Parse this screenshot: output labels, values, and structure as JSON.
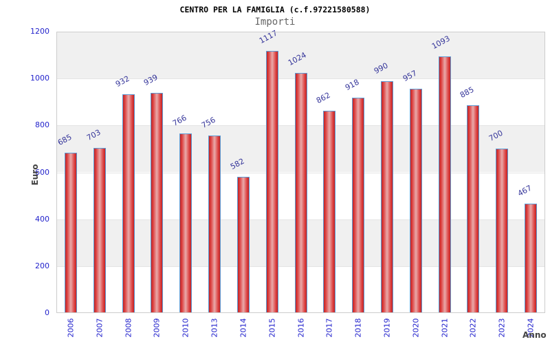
{
  "chart_data": {
    "type": "bar",
    "title": "CENTRO PER LA FAMIGLIA (c.f.97221580588)",
    "subtitle": "Importi",
    "xlabel": "Anno",
    "ylabel": "Euro",
    "categories": [
      "2006",
      "2007",
      "2008",
      "2009",
      "2010",
      "2013",
      "2014",
      "2015",
      "2016",
      "2017",
      "2018",
      "2019",
      "2020",
      "2021",
      "2022",
      "2023",
      "2024"
    ],
    "values": [
      685,
      703,
      932,
      939,
      766,
      756,
      582,
      1117,
      1024,
      862,
      918,
      990,
      957,
      1093,
      885,
      700,
      467
    ],
    "ylim": [
      0,
      1200
    ],
    "ytick_step": 200,
    "yticks": [
      0,
      200,
      400,
      600,
      800,
      1000,
      1200
    ],
    "grid": "alternating-horizontal-bands",
    "legend": "none",
    "value_labels_rotated": true,
    "colors": {
      "bar_edge_red": "#c32222",
      "bar_inner_red": "#dd4444",
      "bar_mid_pink": "#e9aaaa",
      "bar_border_blue": "#5b9bd5",
      "value_label_blue": "#333399",
      "tick_label_blue": "#2222cc",
      "band_gray": "#f0f0f0",
      "plot_border_gray": "#cccccc",
      "axis_title_gray": "#444444",
      "subtitle_gray": "#666666"
    }
  }
}
